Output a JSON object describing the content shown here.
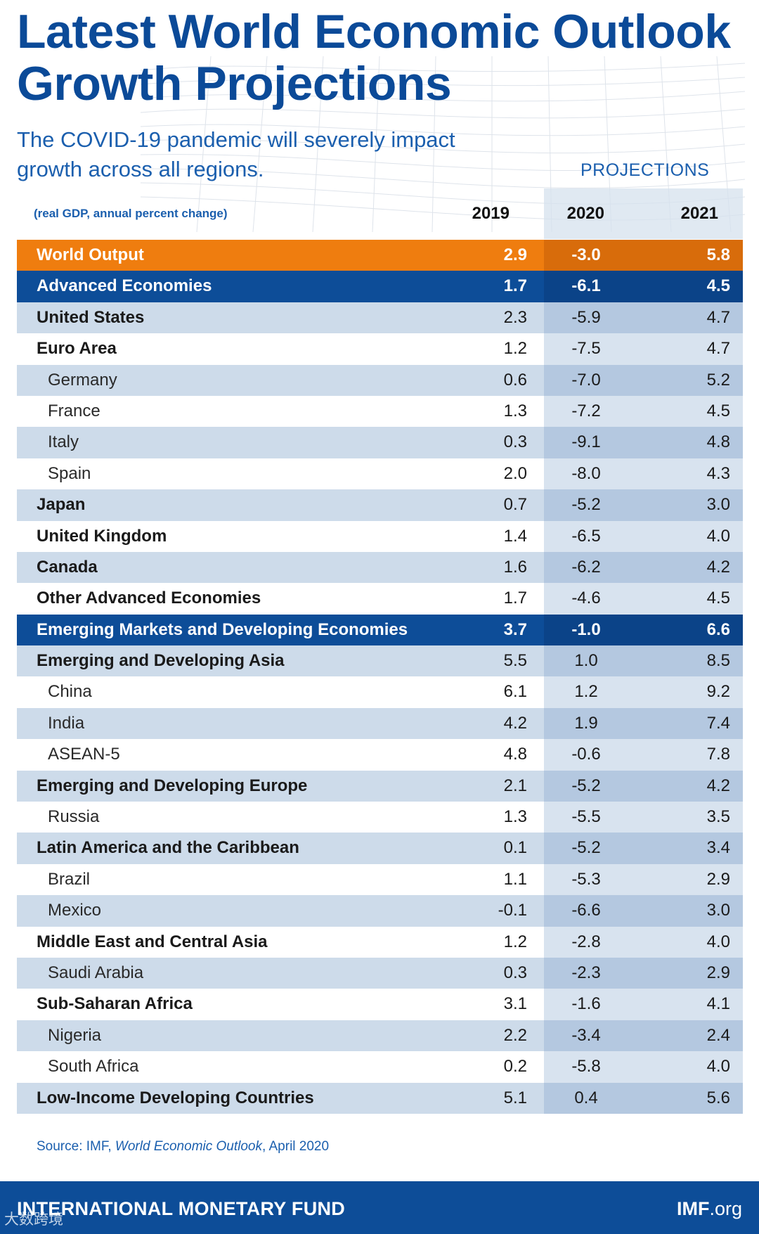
{
  "title_line1": "Latest World Economic Outlook",
  "title_line2": "Growth Projections",
  "subtitle_line1": "The COVID-19 pandemic will severely impact",
  "subtitle_line2": "growth across all regions.",
  "projections_label": "PROJECTIONS",
  "units_label": "(real GDP, annual percent change)",
  "years": [
    "2019",
    "2020",
    "2021"
  ],
  "rows": [
    {
      "name": "World Output",
      "style": "orange",
      "v2019": "2.9",
      "v2020": "-3.0",
      "v2021": "5.8"
    },
    {
      "name": "Advanced Economies",
      "style": "navy",
      "v2019": "1.7",
      "v2020": "-6.1",
      "v2021": "4.5"
    },
    {
      "name": "United States",
      "style": "shaded",
      "level": "region",
      "v2019": "2.3",
      "v2020": "-5.9",
      "v2021": "4.7"
    },
    {
      "name": "Euro Area",
      "style": "white",
      "level": "region",
      "v2019": "1.2",
      "v2020": "-7.5",
      "v2021": "4.7"
    },
    {
      "name": "Germany",
      "style": "shaded",
      "level": "indent",
      "v2019": "0.6",
      "v2020": "-7.0",
      "v2021": "5.2"
    },
    {
      "name": "France",
      "style": "white",
      "level": "indent",
      "v2019": "1.3",
      "v2020": "-7.2",
      "v2021": "4.5"
    },
    {
      "name": "Italy",
      "style": "shaded",
      "level": "indent",
      "v2019": "0.3",
      "v2020": "-9.1",
      "v2021": "4.8"
    },
    {
      "name": "Spain",
      "style": "white",
      "level": "indent",
      "v2019": "2.0",
      "v2020": "-8.0",
      "v2021": "4.3"
    },
    {
      "name": "Japan",
      "style": "shaded",
      "level": "region",
      "v2019": "0.7",
      "v2020": "-5.2",
      "v2021": "3.0"
    },
    {
      "name": "United Kingdom",
      "style": "white",
      "level": "region",
      "v2019": "1.4",
      "v2020": "-6.5",
      "v2021": "4.0"
    },
    {
      "name": "Canada",
      "style": "shaded",
      "level": "region",
      "v2019": "1.6",
      "v2020": "-6.2",
      "v2021": "4.2"
    },
    {
      "name": "Other Advanced Economies",
      "style": "white",
      "level": "region",
      "v2019": "1.7",
      "v2020": "-4.6",
      "v2021": "4.5"
    },
    {
      "name": "Emerging Markets and Developing Economies",
      "style": "navy",
      "v2019": "3.7",
      "v2020": "-1.0",
      "v2021": "6.6"
    },
    {
      "name": "Emerging and Developing Asia",
      "style": "shaded",
      "level": "region",
      "v2019": "5.5",
      "v2020": "1.0",
      "v2021": "8.5"
    },
    {
      "name": "China",
      "style": "white",
      "level": "indent",
      "v2019": "6.1",
      "v2020": "1.2",
      "v2021": "9.2"
    },
    {
      "name": "India",
      "style": "shaded",
      "level": "indent",
      "v2019": "4.2",
      "v2020": "1.9",
      "v2021": "7.4"
    },
    {
      "name": "ASEAN-5",
      "style": "white",
      "level": "indent",
      "v2019": "4.8",
      "v2020": "-0.6",
      "v2021": "7.8"
    },
    {
      "name": "Emerging and Developing Europe",
      "style": "shaded",
      "level": "region",
      "v2019": "2.1",
      "v2020": "-5.2",
      "v2021": "4.2"
    },
    {
      "name": "Russia",
      "style": "white",
      "level": "indent",
      "v2019": "1.3",
      "v2020": "-5.5",
      "v2021": "3.5"
    },
    {
      "name": "Latin America and the Caribbean",
      "style": "shaded",
      "level": "region",
      "v2019": "0.1",
      "v2020": "-5.2",
      "v2021": "3.4"
    },
    {
      "name": "Brazil",
      "style": "white",
      "level": "indent",
      "v2019": "1.1",
      "v2020": "-5.3",
      "v2021": "2.9"
    },
    {
      "name": "Mexico",
      "style": "shaded",
      "level": "indent",
      "v2019": "-0.1",
      "v2020": "-6.6",
      "v2021": "3.0"
    },
    {
      "name": "Middle East and Central Asia",
      "style": "white",
      "level": "region",
      "v2019": "1.2",
      "v2020": "-2.8",
      "v2021": "4.0"
    },
    {
      "name": "Saudi Arabia",
      "style": "shaded",
      "level": "indent",
      "v2019": "0.3",
      "v2020": "-2.3",
      "v2021": "2.9"
    },
    {
      "name": "Sub-Saharan Africa",
      "style": "white",
      "level": "region",
      "v2019": "3.1",
      "v2020": "-1.6",
      "v2021": "4.1"
    },
    {
      "name": "Nigeria",
      "style": "shaded",
      "level": "indent",
      "v2019": "2.2",
      "v2020": "-3.4",
      "v2021": "2.4"
    },
    {
      "name": "South Africa",
      "style": "white",
      "level": "indent",
      "v2019": "0.2",
      "v2020": "-5.8",
      "v2021": "4.0"
    },
    {
      "name": "Low-Income Developing Countries",
      "style": "shaded",
      "level": "region",
      "v2019": "5.1",
      "v2020": "0.4",
      "v2021": "5.6"
    }
  ],
  "source_prefix": "Source: IMF, ",
  "source_italic": "World Economic Outlook",
  "source_suffix": ", April 2020",
  "footer_org": "INTERNATIONAL MONETARY FUND",
  "footer_site_bold": "IMF",
  "footer_site_rest": ".org",
  "watermark": "大数跨境",
  "colors": {
    "brand_navy": "#0d4d98",
    "brand_blue_text": "#1b5fae",
    "highlight_orange": "#ef7d0f",
    "row_shaded": "#cddbea",
    "projection_shaded": "#b4c8e0"
  }
}
